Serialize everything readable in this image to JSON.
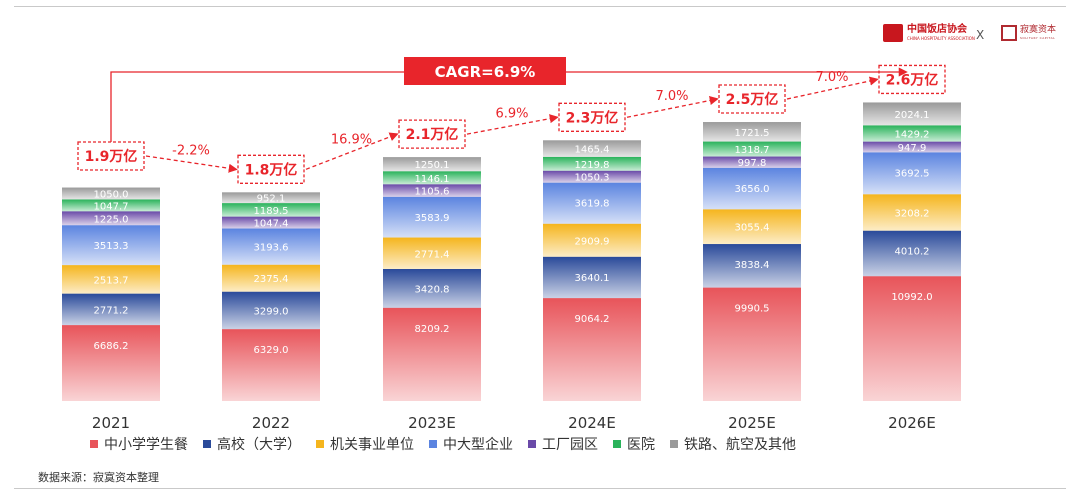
{
  "logos": {
    "association": {
      "name": "中国饭店协会",
      "subtitle": "CHINA HOSPITALITY ASSOCIATION"
    },
    "separator": "X",
    "capital": {
      "name": "寂寞资本",
      "subtitle": "SOLITARY CAPITAL"
    }
  },
  "chart_data": {
    "type": "bar",
    "stacked": true,
    "categories": [
      "2021",
      "2022",
      "2023E",
      "2024E",
      "2025E",
      "2026E"
    ],
    "series": [
      {
        "name": "中小学学生餐",
        "color": "#e8545a",
        "values": [
          6686.2,
          6329.0,
          8209.2,
          9064.2,
          9990.5,
          10992.0
        ]
      },
      {
        "name": "高校（大学）",
        "color": "#2a4a9a",
        "values": [
          2771.2,
          3299.0,
          3420.8,
          3640.1,
          3838.4,
          4010.2
        ]
      },
      {
        "name": "机关事业单位",
        "color": "#f5b51d",
        "values": [
          2513.7,
          2375.4,
          2771.4,
          2909.9,
          3055.4,
          3208.2
        ]
      },
      {
        "name": "中大型企业",
        "color": "#5b84e0",
        "values": [
          3513.3,
          3193.6,
          3583.9,
          3619.8,
          3656.0,
          3692.5
        ]
      },
      {
        "name": "工厂园区",
        "color": "#6a4aa8",
        "values": [
          1225.0,
          1047.4,
          1105.6,
          1050.3,
          997.8,
          947.9
        ]
      },
      {
        "name": "医院",
        "color": "#2ab35b",
        "values": [
          1047.7,
          1189.5,
          1146.1,
          1219.8,
          1318.7,
          1429.2
        ]
      },
      {
        "name": "铁路、航空及其他",
        "color": "#9a9a9a",
        "values": [
          1050.0,
          952.1,
          1250.1,
          1465.4,
          1721.5,
          2024.1
        ]
      }
    ],
    "totals": [
      "1.9万亿",
      "1.8万亿",
      "2.1万亿",
      "2.3万亿",
      "2.5万亿",
      "2.6万亿"
    ],
    "growth_rates": [
      "-2.2%",
      "16.9%",
      "6.9%",
      "7.0%",
      "7.0%"
    ],
    "cagr": "CAGR=6.9%",
    "legend_position": "bottom",
    "grid": false
  },
  "source": "数据来源：寂寞资本整理"
}
